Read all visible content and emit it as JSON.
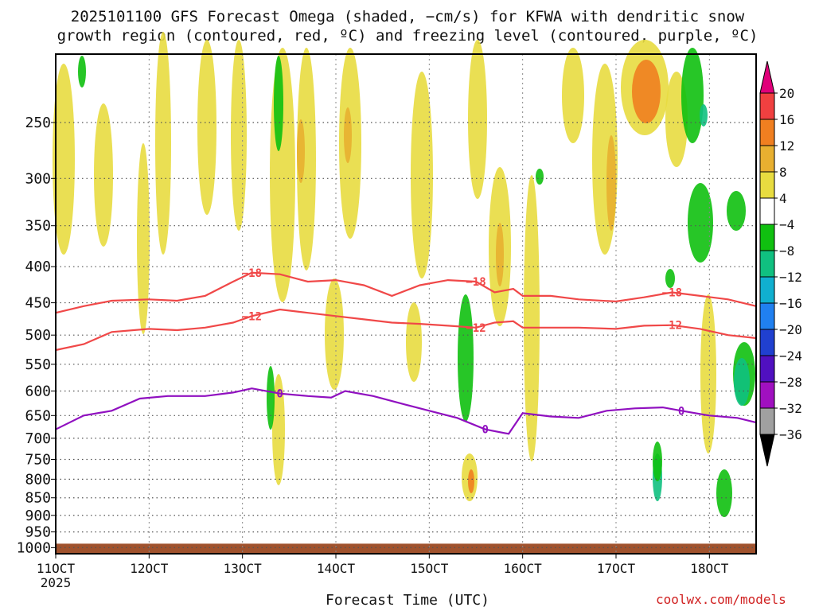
{
  "title_line1": "2025101100 GFS Forecast Omega (shaded, −cm/s) for KFWA with dendritic snow",
  "title_line2": "growth region (contoured, red, ºC) and freezing level (contoured, purple, ºC)",
  "xaxis_title": "Forecast Time (UTC)",
  "credit": "coolwx.com/models",
  "chart_data": {
    "type": "heatmap",
    "title": "2025101100 GFS Forecast Omega (shaded, −cm/s) for KFWA with dendritic snow growth region (contoured, red, ºC) and freezing level (contoured, purple, ºC)",
    "xlabel": "Forecast Time (UTC)",
    "ylabel": "",
    "x_ticks": [
      {
        "label": "11OCT",
        "sub": "2025",
        "day": 11
      },
      {
        "label": "12OCT",
        "day": 12
      },
      {
        "label": "13OCT",
        "day": 13
      },
      {
        "label": "14OCT",
        "day": 14
      },
      {
        "label": "15OCT",
        "day": 15
      },
      {
        "label": "16OCT",
        "day": 16
      },
      {
        "label": "17OCT",
        "day": 17
      },
      {
        "label": "18OCT",
        "day": 18
      }
    ],
    "xlim": [
      11,
      18.5
    ],
    "y_ticks": [
      250,
      300,
      350,
      400,
      450,
      500,
      550,
      600,
      650,
      700,
      750,
      800,
      850,
      900,
      950,
      1000
    ],
    "ylim": [
      1020,
      200
    ],
    "colorbar": {
      "labels": [
        "20",
        "16",
        "12",
        "8",
        "4",
        "−4",
        "−8",
        "−12",
        "−16",
        "−20",
        "−24",
        "−28",
        "−32",
        "−36"
      ],
      "colors": [
        "#e0007a",
        "#f04040",
        "#f07f20",
        "#e8b030",
        "#e8dc40",
        "#ffffff",
        "#10c010",
        "#10c080",
        "#10b0d0",
        "#2080f0",
        "#2040d0",
        "#5010c0",
        "#a010c0",
        "#a0a0a0",
        "#000000"
      ]
    },
    "contours": [
      {
        "label": "−18",
        "color": "#f04848",
        "points": [
          [
            11,
            465
          ],
          [
            11.3,
            455
          ],
          [
            11.6,
            447
          ],
          [
            12,
            445
          ],
          [
            12.3,
            447
          ],
          [
            12.6,
            440
          ],
          [
            12.9,
            420
          ],
          [
            13.1,
            408
          ],
          [
            13.4,
            410
          ],
          [
            13.7,
            420
          ],
          [
            14,
            418
          ],
          [
            14.3,
            425
          ],
          [
            14.6,
            440
          ],
          [
            14.9,
            425
          ],
          [
            15.2,
            418
          ],
          [
            15.5,
            420
          ],
          [
            15.7,
            435
          ],
          [
            15.9,
            430
          ],
          [
            16,
            440
          ],
          [
            16.3,
            440
          ],
          [
            16.6,
            445
          ],
          [
            17,
            448
          ],
          [
            17.3,
            442
          ],
          [
            17.6,
            435
          ],
          [
            17.9,
            440
          ],
          [
            18.2,
            445
          ],
          [
            18.5,
            455
          ]
        ]
      },
      {
        "label": "−12",
        "color": "#f04848",
        "points": [
          [
            11,
            525
          ],
          [
            11.3,
            515
          ],
          [
            11.6,
            495
          ],
          [
            12,
            490
          ],
          [
            12.3,
            492
          ],
          [
            12.6,
            488
          ],
          [
            12.9,
            480
          ],
          [
            13.1,
            470
          ],
          [
            13.4,
            460
          ],
          [
            13.7,
            465
          ],
          [
            14,
            470
          ],
          [
            14.3,
            475
          ],
          [
            14.6,
            480
          ],
          [
            14.9,
            482
          ],
          [
            15.2,
            485
          ],
          [
            15.5,
            488
          ],
          [
            15.7,
            480
          ],
          [
            15.9,
            478
          ],
          [
            16,
            488
          ],
          [
            16.3,
            488
          ],
          [
            16.6,
            488
          ],
          [
            17,
            490
          ],
          [
            17.3,
            485
          ],
          [
            17.6,
            484
          ],
          [
            17.9,
            490
          ],
          [
            18.2,
            500
          ],
          [
            18.5,
            505
          ]
        ]
      },
      {
        "label": "0",
        "color": "#9010c0",
        "points": [
          [
            11,
            680
          ],
          [
            11.3,
            650
          ],
          [
            11.6,
            640
          ],
          [
            11.9,
            615
          ],
          [
            12.2,
            610
          ],
          [
            12.6,
            610
          ],
          [
            12.9,
            603
          ],
          [
            13.1,
            595
          ],
          [
            13.4,
            605
          ],
          [
            13.7,
            610
          ],
          [
            13.95,
            613
          ],
          [
            14.1,
            600
          ],
          [
            14.4,
            610
          ],
          [
            14.7,
            625
          ],
          [
            15,
            640
          ],
          [
            15.3,
            655
          ],
          [
            15.6,
            680
          ],
          [
            15.85,
            690
          ],
          [
            16.0,
            645
          ],
          [
            16.3,
            652
          ],
          [
            16.6,
            655
          ],
          [
            16.9,
            640
          ],
          [
            17.2,
            635
          ],
          [
            17.5,
            633
          ],
          [
            17.7,
            640
          ],
          [
            18,
            650
          ],
          [
            18.3,
            655
          ],
          [
            18.5,
            665
          ]
        ]
      }
    ]
  }
}
